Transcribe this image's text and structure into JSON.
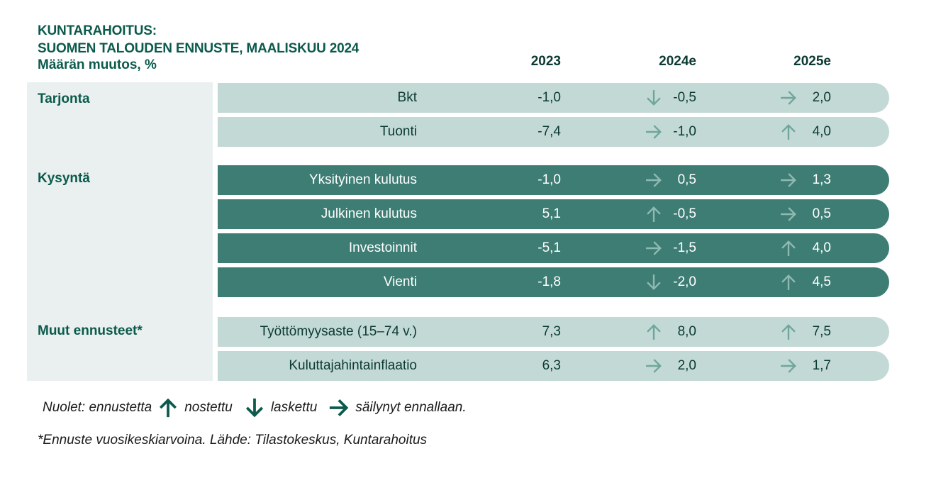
{
  "title": {
    "line1": "KUNTARAHOITUS:",
    "line2": "SUOMEN TALOUDEN ENNUSTE, MAALISKUU 2024",
    "unit": "Määrän muutos, %"
  },
  "years": [
    "2023",
    "2024e",
    "2025e"
  ],
  "groups": {
    "supply": "Tarjonta",
    "demand": "Kysyntä",
    "other": "Muut ennusteet*"
  },
  "rows": [
    {
      "label": "Bkt",
      "v2023": "-1,0",
      "v2024": "-0,5",
      "a2024": "down",
      "v2025": "2,0",
      "a2025": "right"
    },
    {
      "label": "Tuonti",
      "v2023": "-7,4",
      "v2024": "-1,0",
      "a2024": "right",
      "v2025": "4,0",
      "a2025": "up"
    },
    {
      "label": "Yksityinen kulutus",
      "v2023": "-1,0",
      "v2024": "0,5",
      "a2024": "right",
      "v2025": "1,3",
      "a2025": "right"
    },
    {
      "label": "Julkinen kulutus",
      "v2023": "5,1",
      "v2024": "-0,5",
      "a2024": "up",
      "v2025": "0,5",
      "a2025": "right"
    },
    {
      "label": "Investoinnit",
      "v2023": "-5,1",
      "v2024": "-1,5",
      "a2024": "right",
      "v2025": "4,0",
      "a2025": "up"
    },
    {
      "label": "Vienti",
      "v2023": "-1,8",
      "v2024": "-2,0",
      "a2024": "down",
      "v2025": "4,5",
      "a2025": "up"
    },
    {
      "label": "Työttömyysaste (15–74 v.)",
      "v2023": "7,3",
      "v2024": "8,0",
      "a2024": "up",
      "v2025": "7,5",
      "a2025": "up"
    },
    {
      "label": "Kuluttajahintainflaatio",
      "v2023": "6,3",
      "v2024": "2,0",
      "a2024": "right",
      "v2025": "1,7",
      "a2025": "right"
    }
  ],
  "legend": {
    "prefix": "Nuolet: ennustetta",
    "up": "nostettu",
    "down": "laskettu",
    "right": "säilynyt ennallaan."
  },
  "footnote": "*Ennuste vuosikeskiarvoina.  Lähde: Tilastokeskus, Kuntarahoitus",
  "colors": {
    "brand_dark": "#0b5a4c",
    "row_light": "#c3d9d5",
    "row_dark": "#3d7d74",
    "panel": "#e9f0ef",
    "arrow_on_light": "#6fa69c",
    "arrow_on_dark": "#8fbab2"
  }
}
